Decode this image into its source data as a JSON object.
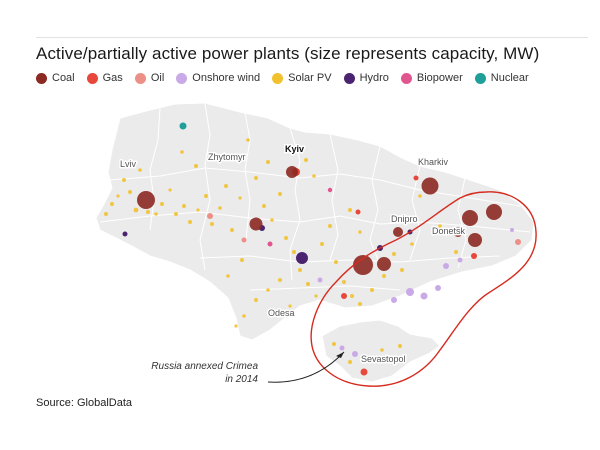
{
  "title": "Active/partially active power plants (size represents capacity, MW)",
  "legend": [
    {
      "label": "Coal",
      "color": "#8b2a22"
    },
    {
      "label": "Gas",
      "color": "#e8473b"
    },
    {
      "label": "Oil",
      "color": "#ec8f86"
    },
    {
      "label": "Onshore wind",
      "color": "#c9a9e6"
    },
    {
      "label": "Solar PV",
      "color": "#f2c12e"
    },
    {
      "label": "Hydro",
      "color": "#4a2470"
    },
    {
      "label": "Biopower",
      "color": "#e2568f"
    },
    {
      "label": "Nuclear",
      "color": "#1f9e9a"
    }
  ],
  "cities": {
    "kyiv": "Kyiv",
    "lviv": "Lviv",
    "zhytomyr": "Zhytomyr",
    "kharkiv": "Kharkiv",
    "dnipro": "Dnipro",
    "donetsk": "Donetsk",
    "odesa": "Odesa",
    "sevastopol": "Sevastopol"
  },
  "annotation": {
    "line1": "Russia annexed Crimea",
    "line2": "in 2014",
    "highlight_color": "#d62b1f"
  },
  "source": "Source: GlobalData"
}
